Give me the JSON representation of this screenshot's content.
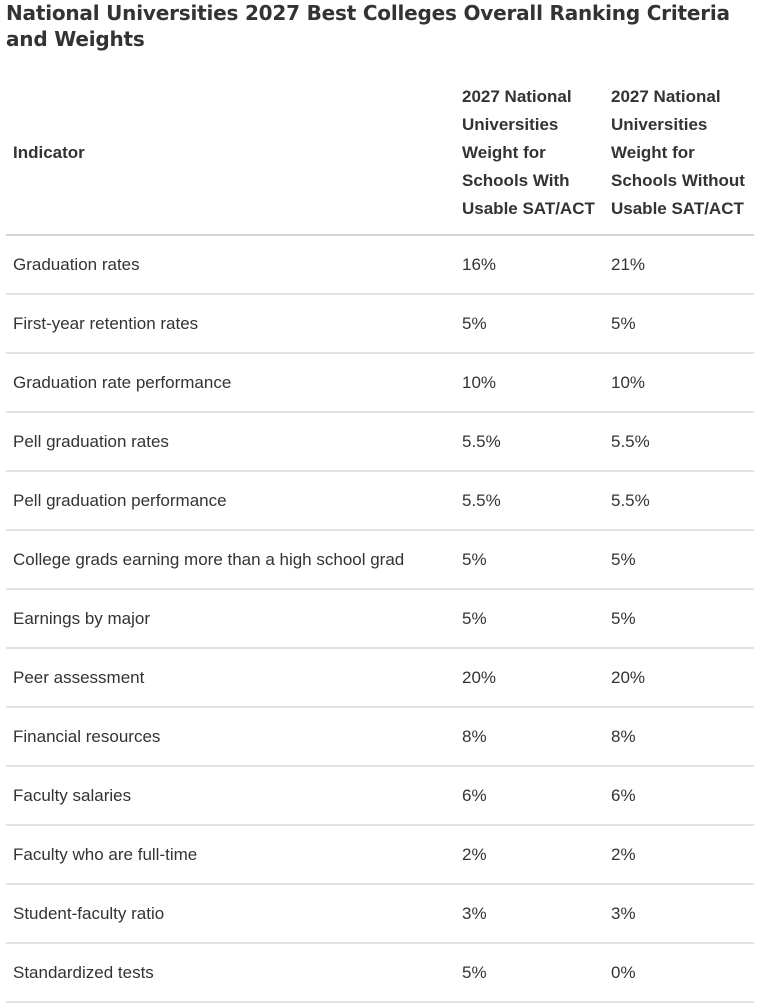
{
  "page": {
    "title": "National Universities 2027 Best Colleges Overall Ranking Criteria and Weights"
  },
  "table": {
    "headers": [
      "Indicator",
      "2027 National Universities Weight for Schools With Usable SAT/ACT",
      "2027 National Universities Weight for Schools Without Usable SAT/ACT"
    ],
    "rows": [
      [
        "Graduation rates",
        "16%",
        "21%"
      ],
      [
        "First-year retention rates",
        "5%",
        "5%"
      ],
      [
        "Graduation rate performance",
        "10%",
        "10%"
      ],
      [
        "Pell graduation rates",
        "5.5%",
        "5.5%"
      ],
      [
        "Pell graduation performance",
        "5.5%",
        "5.5%"
      ],
      [
        "College grads earning more than a high school grad",
        "5%",
        "5%"
      ],
      [
        "Earnings by major",
        "5%",
        "5%"
      ],
      [
        "Peer assessment",
        "20%",
        "20%"
      ],
      [
        "Financial resources",
        "8%",
        "8%"
      ],
      [
        "Faculty salaries",
        "6%",
        "6%"
      ],
      [
        "Faculty who are full-time",
        "2%",
        "2%"
      ],
      [
        "Student-faculty ratio",
        "3%",
        "3%"
      ],
      [
        "Standardized tests",
        "5%",
        "0%"
      ]
    ]
  }
}
